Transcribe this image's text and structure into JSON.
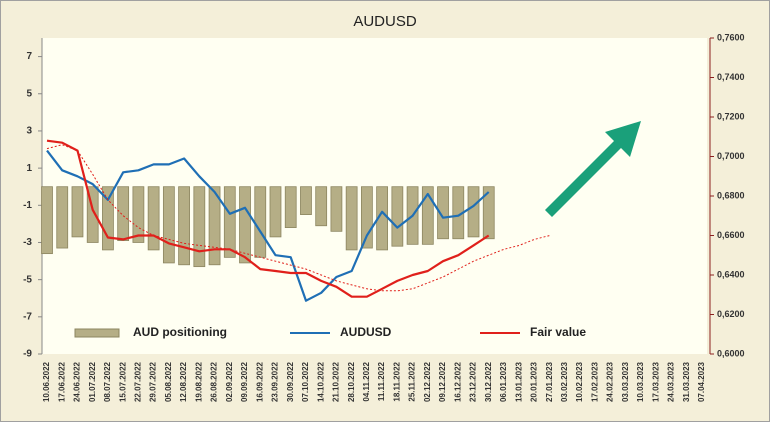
{
  "chart_data": {
    "type": "combo",
    "title": "AUDUSD",
    "categories": [
      "10.06.2022",
      "17.06.2022",
      "24.06.2022",
      "01.07.2022",
      "08.07.2022",
      "15.07.2022",
      "22.07.2022",
      "29.07.2022",
      "05.08.2022",
      "12.08.2022",
      "19.08.2022",
      "26.08.2022",
      "02.09.2022",
      "09.09.2022",
      "16.09.2022",
      "23.09.2022",
      "30.09.2022",
      "07.10.2022",
      "14.10.2022",
      "21.10.2022",
      "28.10.2022",
      "04.11.2022",
      "11.11.2022",
      "18.11.2022",
      "25.11.2022",
      "02.12.2022",
      "09.12.2022",
      "16.12.2022",
      "23.12.2022",
      "30.12.2022",
      "06.01.2023",
      "13.01.2023",
      "20.01.2023",
      "27.01.2023",
      "03.02.2023",
      "10.02.2023",
      "17.02.2023",
      "24.02.2023",
      "03.03.2023",
      "10.03.2023",
      "17.03.2023",
      "24.03.2023",
      "31.03.2023",
      "07.04.2023"
    ],
    "series": [
      {
        "name": "AUD positioning",
        "type": "bar",
        "color": "#b5ae86",
        "axis": "y",
        "values": [
          -3.6,
          -3.3,
          -2.7,
          -3.0,
          -3.4,
          -2.9,
          -3.0,
          -3.4,
          -4.1,
          -4.2,
          -4.3,
          -4.2,
          -3.8,
          -4.1,
          -3.8,
          -2.7,
          -2.2,
          -1.5,
          -2.1,
          -2.4,
          -3.4,
          -3.3,
          -3.4,
          -3.2,
          -3.1,
          -3.1,
          -2.8,
          -2.8,
          -2.7,
          -2.8,
          null,
          null,
          null,
          null,
          null,
          null,
          null,
          null,
          null,
          null,
          null,
          null,
          null,
          null
        ]
      },
      {
        "name": "AUDUSD",
        "type": "line",
        "color": "#1f6fb5",
        "axis": "y2",
        "values": [
          0.703,
          0.693,
          0.69,
          0.686,
          0.678,
          0.692,
          0.693,
          0.696,
          0.696,
          0.699,
          0.69,
          0.682,
          0.671,
          0.674,
          0.662,
          0.65,
          0.649,
          0.627,
          0.631,
          0.639,
          0.642,
          0.66,
          0.672,
          0.664,
          0.67,
          0.681,
          0.669,
          0.67,
          0.675,
          0.682,
          null,
          null,
          null,
          null,
          null,
          null,
          null,
          null,
          null,
          null,
          null,
          null,
          null,
          null
        ]
      },
      {
        "name": "Fair value",
        "type": "line",
        "color": "#e0201b",
        "axis": "y2",
        "values": [
          0.708,
          0.707,
          0.703,
          0.673,
          0.659,
          0.658,
          0.66,
          0.66,
          0.656,
          0.654,
          0.652,
          0.653,
          0.653,
          0.649,
          0.643,
          0.642,
          0.641,
          0.641,
          0.637,
          0.634,
          0.629,
          0.629,
          0.633,
          0.637,
          0.64,
          0.642,
          0.647,
          0.65,
          0.655,
          0.66,
          null,
          null,
          null,
          null,
          null,
          null,
          null,
          null,
          null,
          null,
          null,
          null,
          null,
          null
        ]
      },
      {
        "type": "line",
        "line_style": "dotted",
        "color": "#e0201b",
        "axis": "y2",
        "values": [
          0.704,
          0.706,
          0.703,
          0.691,
          0.678,
          0.67,
          0.664,
          0.66,
          0.658,
          0.656,
          0.655,
          0.654,
          0.653,
          0.651,
          0.649,
          0.647,
          0.645,
          0.643,
          0.64,
          0.637,
          0.635,
          0.633,
          0.632,
          0.632,
          0.633,
          0.636,
          0.639,
          0.643,
          0.647,
          0.65,
          0.653,
          0.655,
          0.658,
          0.66,
          null,
          null,
          null,
          null,
          null,
          null,
          null,
          null,
          null,
          null
        ]
      }
    ],
    "ylim": [
      -9,
      8
    ],
    "yticks": [
      7,
      5,
      3,
      1,
      -1,
      -3,
      -5,
      -7,
      -9
    ],
    "y2lim": [
      0.6,
      0.76
    ],
    "y2ticks": [
      {
        "value": 0.76,
        "label": "0,7600"
      },
      {
        "value": 0.74,
        "label": "0,7400"
      },
      {
        "value": 0.72,
        "label": "0,7200"
      },
      {
        "value": 0.7,
        "label": "0,7000"
      },
      {
        "value": 0.68,
        "label": "0,6800"
      },
      {
        "value": 0.66,
        "label": "0,6600"
      },
      {
        "value": 0.64,
        "label": "0,6400"
      },
      {
        "value": 0.62,
        "label": "0,6200"
      },
      {
        "value": 0.6,
        "label": "0,6000"
      }
    ],
    "legend": "bottom"
  }
}
